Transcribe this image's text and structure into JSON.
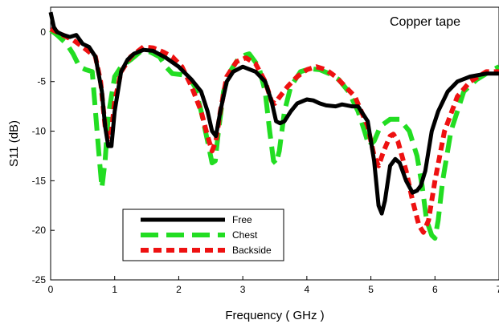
{
  "chart_data": {
    "type": "line",
    "title": "",
    "annotation": "Copper tape",
    "xlabel": "Frequency ( GHz )",
    "ylabel": "S11 (dB)",
    "xlim": [
      0,
      7
    ],
    "ylim": [
      -25,
      2.5
    ],
    "xticks": [
      0,
      1,
      2,
      3,
      4,
      5,
      6,
      7
    ],
    "yticks": [
      0,
      -5,
      -10,
      -15,
      -20,
      -25
    ],
    "grid": false,
    "legend_position": "lower-left",
    "series": [
      {
        "name": "Free",
        "color": "#000000",
        "style": "solid",
        "points": [
          [
            0,
            2
          ],
          [
            0.05,
            0.5
          ],
          [
            0.1,
            0
          ],
          [
            0.2,
            -0.3
          ],
          [
            0.3,
            -0.5
          ],
          [
            0.4,
            -0.3
          ],
          [
            0.5,
            -1.2
          ],
          [
            0.6,
            -1.5
          ],
          [
            0.7,
            -2.5
          ],
          [
            0.8,
            -6
          ],
          [
            0.85,
            -9.5
          ],
          [
            0.9,
            -11.5
          ],
          [
            0.95,
            -11.5
          ],
          [
            1.0,
            -8
          ],
          [
            1.1,
            -4
          ],
          [
            1.2,
            -2.8
          ],
          [
            1.3,
            -2.2
          ],
          [
            1.45,
            -1.8
          ],
          [
            1.6,
            -1.9
          ],
          [
            1.8,
            -2.6
          ],
          [
            2.0,
            -3.5
          ],
          [
            2.2,
            -4.8
          ],
          [
            2.35,
            -6
          ],
          [
            2.45,
            -8
          ],
          [
            2.52,
            -10
          ],
          [
            2.58,
            -10.5
          ],
          [
            2.65,
            -8
          ],
          [
            2.75,
            -5
          ],
          [
            2.85,
            -4
          ],
          [
            3.0,
            -3.5
          ],
          [
            3.2,
            -4
          ],
          [
            3.35,
            -5
          ],
          [
            3.45,
            -7
          ],
          [
            3.52,
            -9
          ],
          [
            3.58,
            -9.2
          ],
          [
            3.65,
            -9
          ],
          [
            3.75,
            -8
          ],
          [
            3.85,
            -7.2
          ],
          [
            4.0,
            -6.8
          ],
          [
            4.1,
            -6.9
          ],
          [
            4.2,
            -7.2
          ],
          [
            4.3,
            -7.4
          ],
          [
            4.45,
            -7.5
          ],
          [
            4.55,
            -7.3
          ],
          [
            4.7,
            -7.5
          ],
          [
            4.8,
            -7.5
          ],
          [
            4.95,
            -9
          ],
          [
            5.05,
            -13
          ],
          [
            5.12,
            -17.5
          ],
          [
            5.17,
            -18.3
          ],
          [
            5.22,
            -17
          ],
          [
            5.3,
            -13.5
          ],
          [
            5.38,
            -12.8
          ],
          [
            5.45,
            -13.2
          ],
          [
            5.55,
            -15
          ],
          [
            5.65,
            -16.2
          ],
          [
            5.72,
            -16
          ],
          [
            5.78,
            -15.5
          ],
          [
            5.85,
            -14
          ],
          [
            5.95,
            -10
          ],
          [
            6.05,
            -8
          ],
          [
            6.2,
            -6
          ],
          [
            6.35,
            -5
          ],
          [
            6.55,
            -4.5
          ],
          [
            6.8,
            -4.2
          ],
          [
            7.0,
            -4.2
          ]
        ]
      },
      {
        "name": "Chest",
        "color": "#22dd22",
        "style": "dashed",
        "points": [
          [
            0,
            0.2
          ],
          [
            0.1,
            -0.3
          ],
          [
            0.25,
            -1.2
          ],
          [
            0.35,
            -2.2
          ],
          [
            0.45,
            -3.5
          ],
          [
            0.55,
            -3.8
          ],
          [
            0.65,
            -4
          ],
          [
            0.7,
            -8
          ],
          [
            0.75,
            -12
          ],
          [
            0.8,
            -15.7
          ],
          [
            0.85,
            -13
          ],
          [
            0.9,
            -8.5
          ],
          [
            1.0,
            -4.5
          ],
          [
            1.1,
            -3.5
          ],
          [
            1.25,
            -2.8
          ],
          [
            1.4,
            -2
          ],
          [
            1.55,
            -2
          ],
          [
            1.7,
            -2.5
          ],
          [
            1.8,
            -3.5
          ],
          [
            1.9,
            -4.2
          ],
          [
            2.05,
            -4.3
          ],
          [
            2.15,
            -4.5
          ],
          [
            2.25,
            -5.5
          ],
          [
            2.35,
            -8
          ],
          [
            2.45,
            -11
          ],
          [
            2.52,
            -13.2
          ],
          [
            2.57,
            -13
          ],
          [
            2.62,
            -10
          ],
          [
            2.7,
            -6
          ],
          [
            2.8,
            -4
          ],
          [
            2.95,
            -2.5
          ],
          [
            3.1,
            -2.2
          ],
          [
            3.25,
            -3.5
          ],
          [
            3.35,
            -6
          ],
          [
            3.42,
            -10
          ],
          [
            3.48,
            -13
          ],
          [
            3.52,
            -13.3
          ],
          [
            3.57,
            -12
          ],
          [
            3.65,
            -8
          ],
          [
            3.75,
            -5.5
          ],
          [
            3.9,
            -4
          ],
          [
            4.05,
            -3.7
          ],
          [
            4.2,
            -3.8
          ],
          [
            4.35,
            -4.2
          ],
          [
            4.5,
            -4.8
          ],
          [
            4.65,
            -6
          ],
          [
            4.8,
            -8
          ],
          [
            4.9,
            -10
          ],
          [
            4.97,
            -11.5
          ],
          [
            5.05,
            -11
          ],
          [
            5.15,
            -9.5
          ],
          [
            5.3,
            -8.8
          ],
          [
            5.45,
            -8.8
          ],
          [
            5.6,
            -10
          ],
          [
            5.72,
            -12.5
          ],
          [
            5.8,
            -15.5
          ],
          [
            5.87,
            -19
          ],
          [
            5.95,
            -20.5
          ],
          [
            6.0,
            -20.8
          ],
          [
            6.05,
            -19
          ],
          [
            6.12,
            -15
          ],
          [
            6.25,
            -10
          ],
          [
            6.45,
            -6
          ],
          [
            6.65,
            -4.8
          ],
          [
            6.85,
            -4
          ],
          [
            7.0,
            -3.5
          ]
        ]
      },
      {
        "name": "Backside",
        "color": "#ee1111",
        "style": "dotted",
        "points": [
          [
            0,
            0.3
          ],
          [
            0.1,
            0
          ],
          [
            0.25,
            -0.5
          ],
          [
            0.35,
            -0.8
          ],
          [
            0.5,
            -1.5
          ],
          [
            0.6,
            -2
          ],
          [
            0.7,
            -2.5
          ],
          [
            0.78,
            -5
          ],
          [
            0.85,
            -9.5
          ],
          [
            0.9,
            -10.8
          ],
          [
            0.95,
            -10
          ],
          [
            1.0,
            -7
          ],
          [
            1.1,
            -4
          ],
          [
            1.25,
            -2.5
          ],
          [
            1.45,
            -1.5
          ],
          [
            1.6,
            -1.6
          ],
          [
            1.75,
            -2
          ],
          [
            1.9,
            -2.5
          ],
          [
            2.05,
            -3.5
          ],
          [
            2.2,
            -5.5
          ],
          [
            2.35,
            -8
          ],
          [
            2.45,
            -10.5
          ],
          [
            2.52,
            -12
          ],
          [
            2.58,
            -11
          ],
          [
            2.65,
            -8
          ],
          [
            2.75,
            -4.5
          ],
          [
            2.9,
            -3
          ],
          [
            3.05,
            -2.6
          ],
          [
            3.2,
            -3.2
          ],
          [
            3.35,
            -5
          ],
          [
            3.45,
            -7
          ],
          [
            3.5,
            -7.2
          ],
          [
            3.58,
            -6.5
          ],
          [
            3.7,
            -5.5
          ],
          [
            3.85,
            -4.5
          ],
          [
            4.0,
            -3.8
          ],
          [
            4.15,
            -3.5
          ],
          [
            4.3,
            -3.8
          ],
          [
            4.45,
            -4.5
          ],
          [
            4.6,
            -5.5
          ],
          [
            4.75,
            -6.5
          ],
          [
            4.85,
            -8
          ],
          [
            4.95,
            -9.5
          ],
          [
            5.05,
            -12.5
          ],
          [
            5.12,
            -13.5
          ],
          [
            5.2,
            -12
          ],
          [
            5.3,
            -10.5
          ],
          [
            5.35,
            -10.3
          ],
          [
            5.42,
            -11
          ],
          [
            5.55,
            -14
          ],
          [
            5.65,
            -17
          ],
          [
            5.75,
            -19.5
          ],
          [
            5.82,
            -20.2
          ],
          [
            5.9,
            -19
          ],
          [
            6.0,
            -15
          ],
          [
            6.15,
            -10
          ],
          [
            6.35,
            -6.5
          ],
          [
            6.55,
            -5
          ],
          [
            6.8,
            -4
          ],
          [
            7.0,
            -4
          ]
        ]
      }
    ]
  }
}
